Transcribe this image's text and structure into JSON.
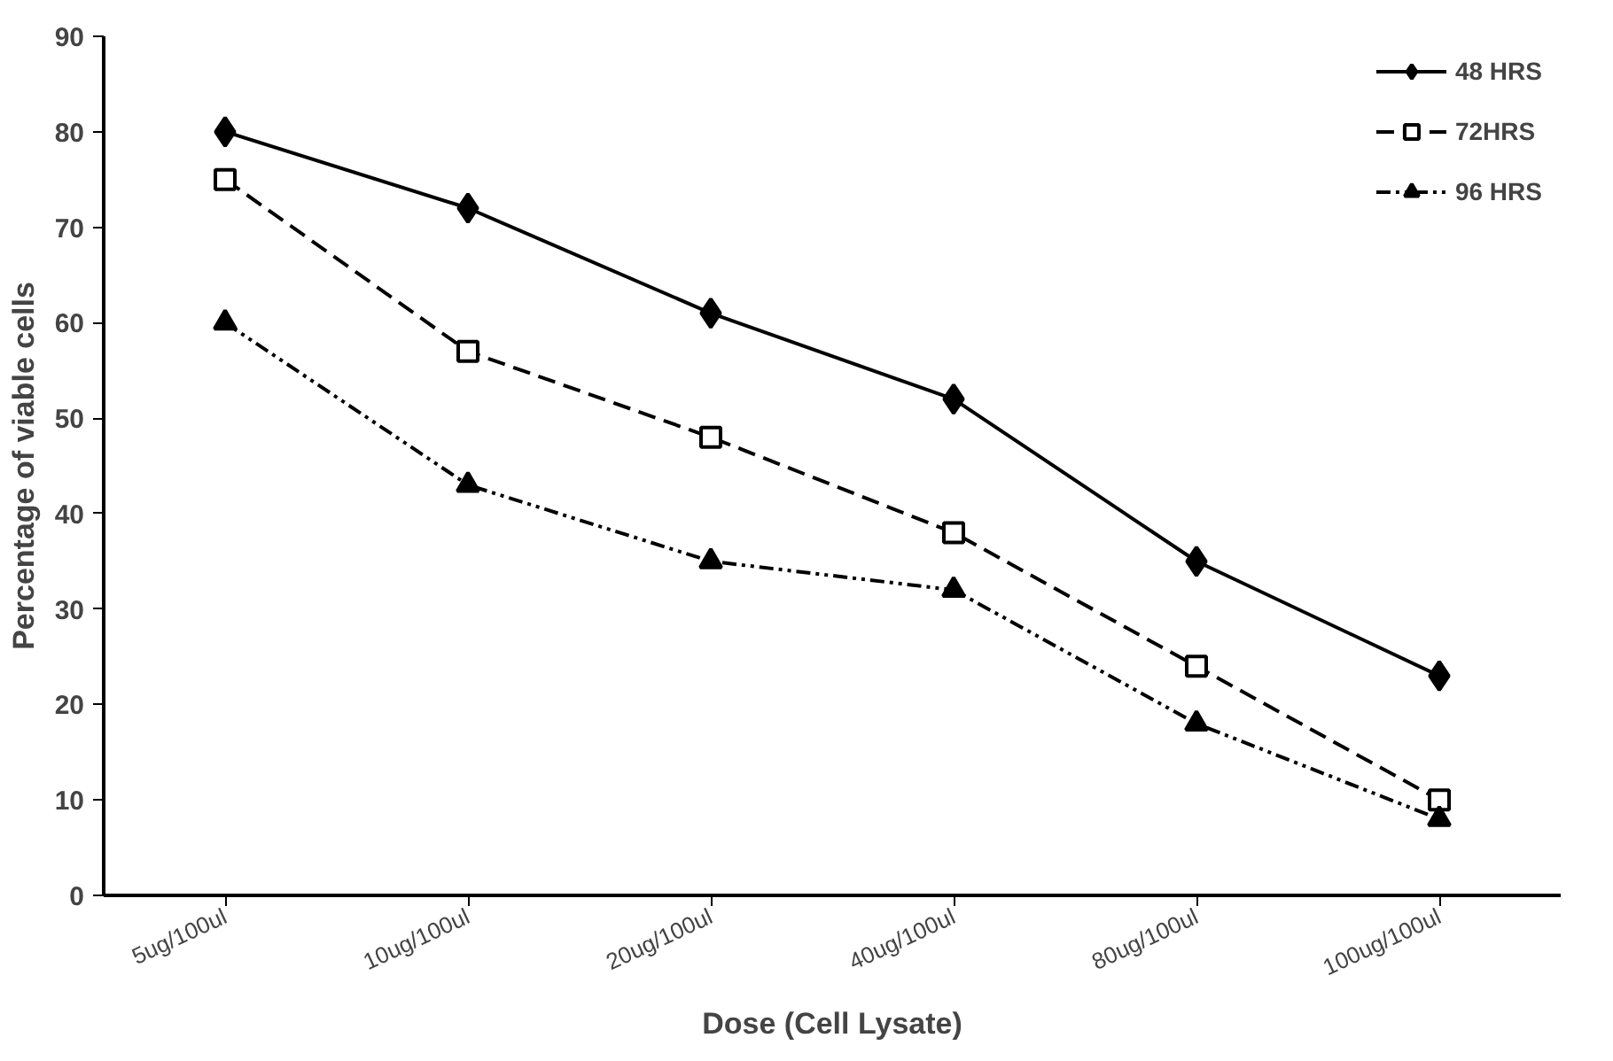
{
  "chart_data": {
    "type": "line",
    "xlabel": "Dose (Cell Lysate)",
    "ylabel": "Percentage of viable cells",
    "categories": [
      "5ug/100ul",
      "10ug/100ul",
      "20ug/100ul",
      "40ug/100ul",
      "80ug/100ul",
      "100ug/100ul"
    ],
    "ylim": [
      0,
      90
    ],
    "yticks": [
      0,
      10,
      20,
      30,
      40,
      50,
      60,
      70,
      80,
      90
    ],
    "grid": false,
    "legend": "top right",
    "series": [
      {
        "name": "48 HRS",
        "color": "#000000",
        "marker": "diamond",
        "line_style": "solid",
        "values": [
          80,
          72,
          61,
          52,
          35,
          23
        ]
      },
      {
        "name": "72HRS",
        "color": "#000000",
        "marker": "square",
        "line_style": "dashed",
        "values": [
          75,
          57,
          48,
          38,
          24,
          10
        ]
      },
      {
        "name": "96 HRS",
        "color": "#000000",
        "marker": "triangle",
        "line_style": "dotted",
        "values": [
          60,
          43,
          35,
          32,
          18,
          8
        ]
      }
    ]
  }
}
